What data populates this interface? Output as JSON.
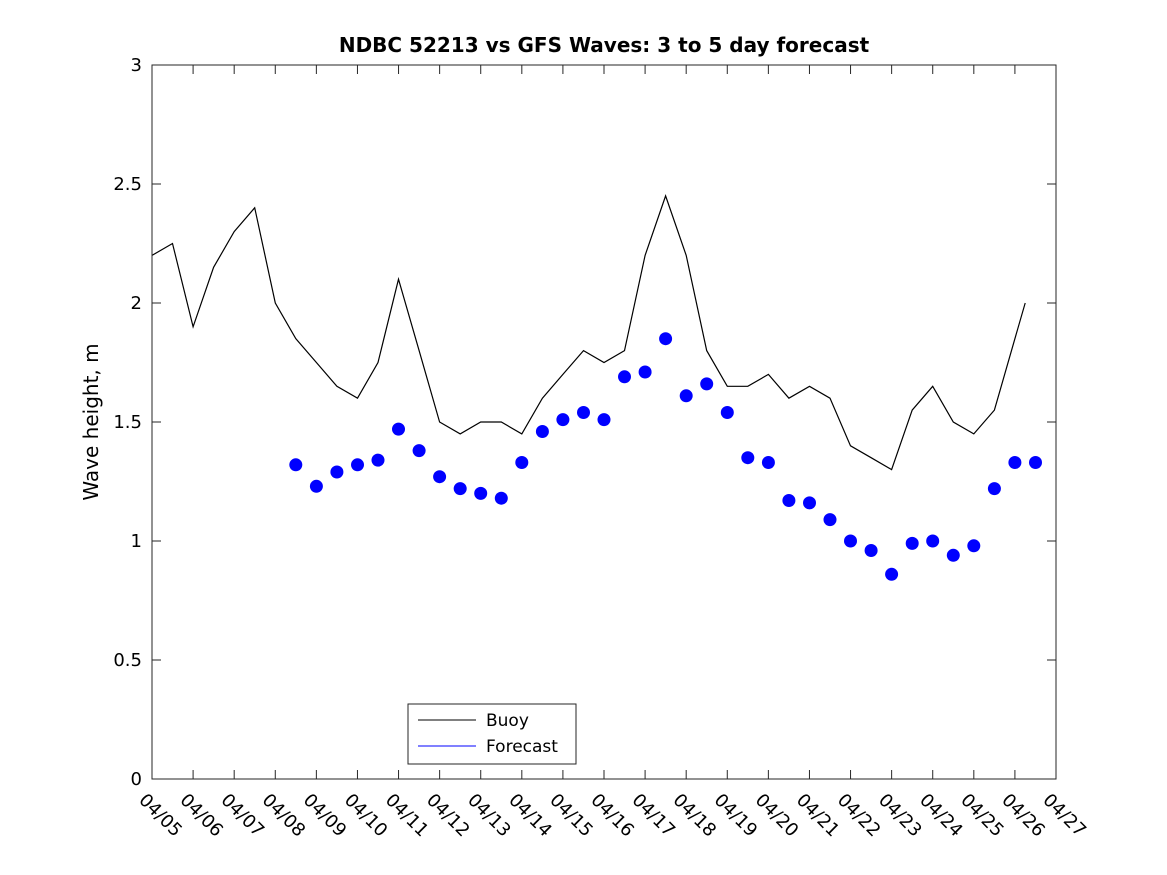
{
  "chart_data": {
    "type": "line",
    "title": "NDBC 52213 vs GFS Waves: 3 to 5 day forecast",
    "xlabel": "",
    "ylabel": "Wave height, m",
    "ylim": [
      0,
      3
    ],
    "yticks": [
      "0",
      "0.5",
      "1",
      "1.5",
      "2",
      "2.5",
      "3"
    ],
    "xlim": [
      "04/05",
      "04/27"
    ],
    "xticks": [
      "04/05",
      "04/06",
      "04/07",
      "04/08",
      "04/09",
      "04/10",
      "04/11",
      "04/12",
      "04/13",
      "04/14",
      "04/15",
      "04/16",
      "04/17",
      "04/18",
      "04/19",
      "04/20",
      "04/21",
      "04/22",
      "04/23",
      "04/24",
      "04/25",
      "04/26",
      "04/27"
    ],
    "grid": false,
    "legend_position": "bottom-left",
    "colors": {
      "buoy": "#000000",
      "forecast": "#0000ff"
    },
    "series": [
      {
        "name": "Buoy",
        "style": "line",
        "x": [
          "04/05 00:00",
          "04/05 12:00",
          "04/06 00:00",
          "04/06 12:00",
          "04/07 00:00",
          "04/07 12:00",
          "04/08 00:00",
          "04/08 12:00",
          "04/09 00:00",
          "04/09 12:00",
          "04/10 00:00",
          "04/10 12:00",
          "04/11 00:00",
          "04/11 12:00",
          "04/12 00:00",
          "04/12 12:00",
          "04/13 00:00",
          "04/13 12:00",
          "04/14 00:00",
          "04/14 12:00",
          "04/15 00:00",
          "04/15 12:00",
          "04/16 00:00",
          "04/16 12:00",
          "04/17 00:00",
          "04/17 12:00",
          "04/18 00:00",
          "04/18 12:00",
          "04/19 00:00",
          "04/19 12:00",
          "04/20 00:00",
          "04/20 12:00",
          "04/21 00:00",
          "04/21 12:00",
          "04/22 00:00",
          "04/22 12:00",
          "04/23 00:00",
          "04/23 12:00",
          "04/24 00:00",
          "04/24 12:00",
          "04/25 00:00",
          "04/25 12:00",
          "04/26 00:00",
          "04/26 06:00"
        ],
        "values": [
          2.2,
          2.25,
          1.9,
          2.15,
          2.3,
          2.4,
          2.0,
          1.85,
          1.75,
          1.65,
          1.6,
          1.75,
          2.1,
          1.8,
          1.5,
          1.45,
          1.5,
          1.5,
          1.45,
          1.6,
          1.7,
          1.8,
          1.75,
          1.8,
          2.2,
          2.45,
          2.2,
          1.8,
          1.65,
          1.65,
          1.7,
          1.6,
          1.65,
          1.6,
          1.4,
          1.35,
          1.3,
          1.55,
          1.65,
          1.5,
          1.45,
          1.55,
          1.85,
          2.0
        ]
      },
      {
        "name": "Forecast",
        "style": "markers",
        "x": [
          "04/08 12:00",
          "04/09 00:00",
          "04/09 12:00",
          "04/10 00:00",
          "04/10 12:00",
          "04/11 00:00",
          "04/11 12:00",
          "04/12 00:00",
          "04/12 12:00",
          "04/13 00:00",
          "04/13 12:00",
          "04/14 00:00",
          "04/14 12:00",
          "04/15 00:00",
          "04/15 12:00",
          "04/16 00:00",
          "04/16 12:00",
          "04/17 00:00",
          "04/17 12:00",
          "04/18 00:00",
          "04/18 12:00",
          "04/19 00:00",
          "04/19 12:00",
          "04/20 00:00",
          "04/20 12:00",
          "04/21 00:00",
          "04/21 12:00",
          "04/22 00:00",
          "04/22 12:00",
          "04/23 00:00",
          "04/23 12:00",
          "04/24 00:00",
          "04/24 12:00",
          "04/25 00:00",
          "04/25 12:00",
          "04/26 00:00",
          "04/26 12:00"
        ],
        "values": [
          1.32,
          1.23,
          1.29,
          1.32,
          1.34,
          1.47,
          1.38,
          1.27,
          1.22,
          1.2,
          1.18,
          1.33,
          1.46,
          1.51,
          1.54,
          1.51,
          1.69,
          1.71,
          1.85,
          1.61,
          1.66,
          1.54,
          1.35,
          1.33,
          1.17,
          1.16,
          1.09,
          1.0,
          0.96,
          0.86,
          0.99,
          1.0,
          0.94,
          0.98,
          1.22,
          1.33,
          1.33
        ]
      }
    ],
    "legend": {
      "buoy": "Buoy",
      "forecast": "Forecast"
    }
  }
}
